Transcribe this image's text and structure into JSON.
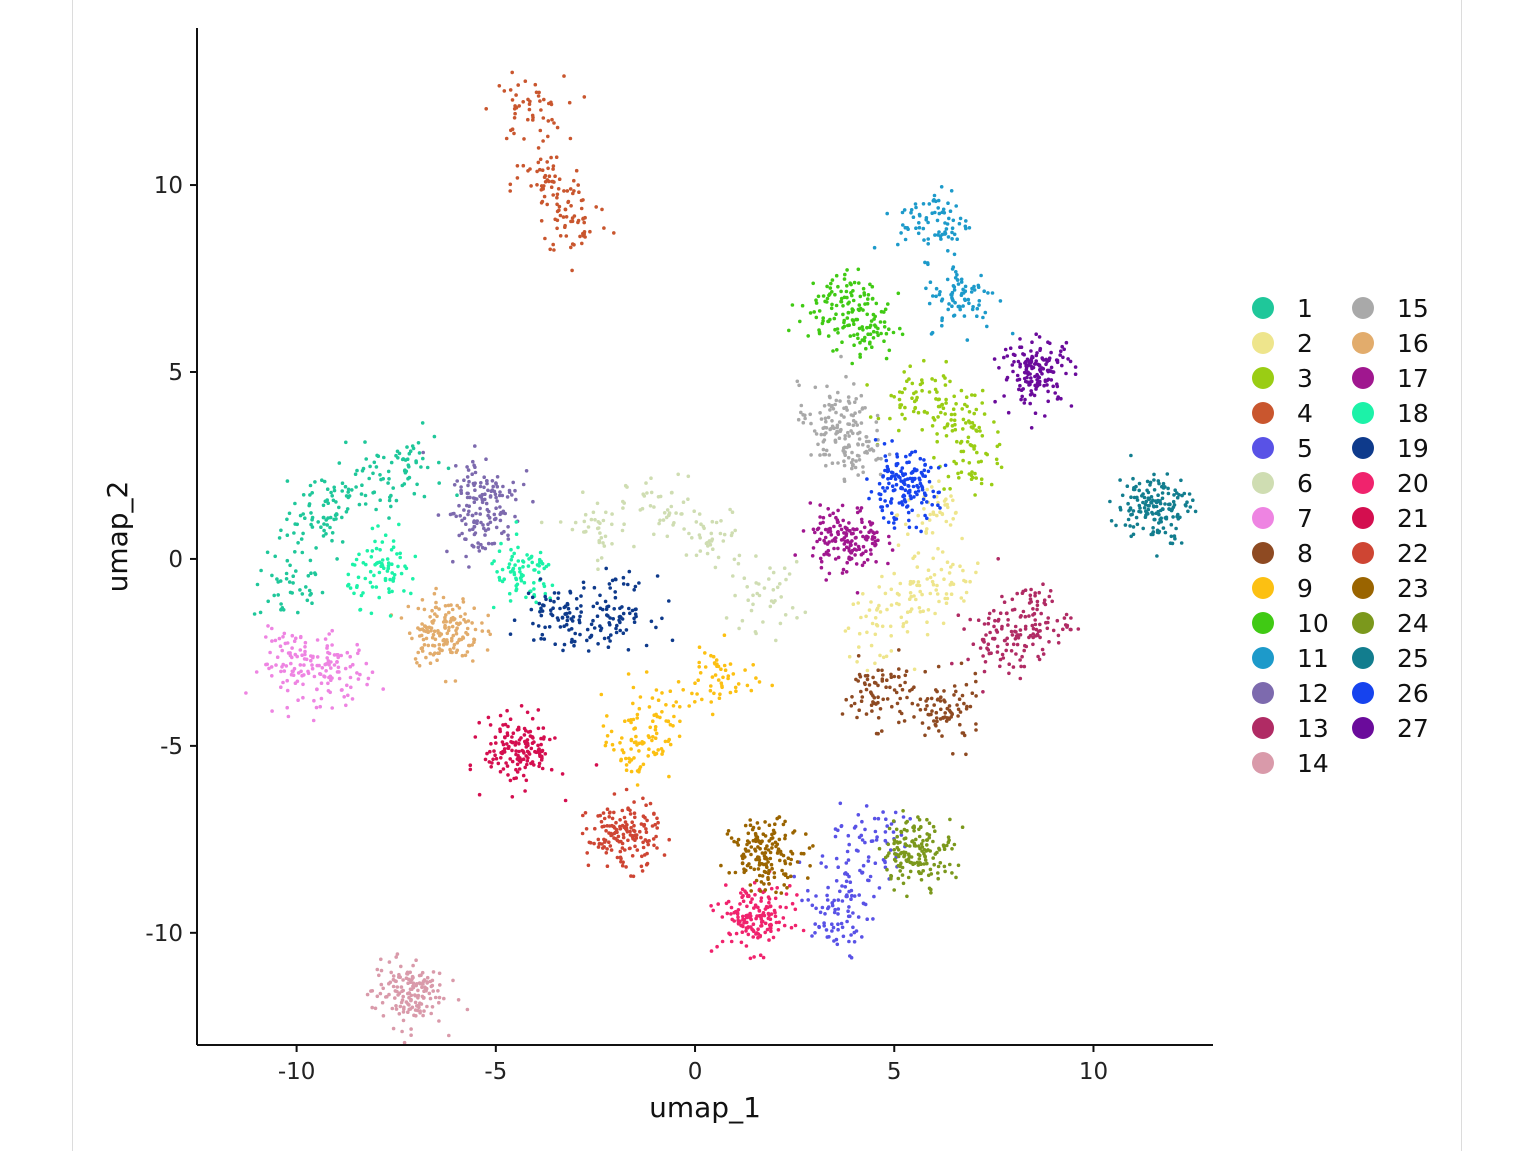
{
  "chart_data": {
    "type": "scatter",
    "title": "",
    "xlabel": "umap_1",
    "ylabel": "umap_2",
    "xlim": [
      -12.5,
      13
    ],
    "ylim": [
      -13,
      14.2
    ],
    "x_ticks": [
      -10,
      -5,
      0,
      5,
      10
    ],
    "x_tick_labels": [
      "-10",
      "-5",
      "0",
      "5",
      "10"
    ],
    "y_ticks": [
      -10,
      -5,
      0,
      5,
      10
    ],
    "y_tick_labels": [
      "-10",
      "-5",
      "0",
      "5",
      "10"
    ],
    "grid": false,
    "legend_position": "right",
    "legend_columns": 2,
    "series": [
      {
        "name": "1",
        "color": "#1FC79A",
        "centers": [
          [
            -9.5,
            0.8
          ],
          [
            -8.0,
            2.0
          ],
          [
            -10.2,
            -0.8
          ],
          [
            -9.2,
            1.6
          ],
          [
            -7.2,
            2.6
          ]
        ]
      },
      {
        "name": "2",
        "color": "#EEE58C",
        "centers": [
          [
            5.5,
            -1.0
          ],
          [
            6.3,
            -0.5
          ],
          [
            4.5,
            -1.8
          ],
          [
            6.0,
            1.2
          ]
        ]
      },
      {
        "name": "3",
        "color": "#9ACD14",
        "centers": [
          [
            6.5,
            3.8
          ],
          [
            5.6,
            4.2
          ],
          [
            7.0,
            2.8
          ]
        ]
      },
      {
        "name": "4",
        "color": "#C9562E",
        "centers": [
          [
            -4.2,
            12.0
          ],
          [
            -3.7,
            10.0
          ],
          [
            -3.0,
            9.0
          ]
        ]
      },
      {
        "name": "5",
        "color": "#5952E6",
        "centers": [
          [
            3.8,
            -8.6
          ],
          [
            3.4,
            -9.8
          ],
          [
            4.4,
            -7.4
          ]
        ]
      },
      {
        "name": "6",
        "color": "#CFDDB2",
        "centers": [
          [
            -0.8,
            1.3
          ],
          [
            0.5,
            0.5
          ],
          [
            1.8,
            -1.0
          ],
          [
            -2.5,
            0.8
          ]
        ]
      },
      {
        "name": "7",
        "color": "#EE84E2",
        "centers": [
          [
            -10.0,
            -2.8
          ],
          [
            -9.0,
            -3.0
          ]
        ]
      },
      {
        "name": "8",
        "color": "#8E4A22",
        "centers": [
          [
            4.6,
            -3.6
          ],
          [
            6.3,
            -4.1
          ]
        ]
      },
      {
        "name": "9",
        "color": "#FCC012",
        "centers": [
          [
            0.6,
            -3.2
          ],
          [
            -1.0,
            -4.2
          ],
          [
            -1.5,
            -5.0
          ]
        ]
      },
      {
        "name": "10",
        "color": "#40CA14",
        "centers": [
          [
            3.5,
            6.8
          ],
          [
            4.2,
            6.2
          ]
        ]
      },
      {
        "name": "11",
        "color": "#1D9ACA",
        "centers": [
          [
            6.0,
            9.0
          ],
          [
            6.7,
            7.0
          ]
        ]
      },
      {
        "name": "12",
        "color": "#7D6AAE",
        "centers": [
          [
            -5.3,
            1.9
          ],
          [
            -5.4,
            1.0
          ]
        ]
      },
      {
        "name": "13",
        "color": "#B02B64",
        "centers": [
          [
            7.7,
            -2.2
          ],
          [
            8.5,
            -1.6
          ]
        ]
      },
      {
        "name": "14",
        "color": "#D99AAA",
        "centers": [
          [
            -7.2,
            -11.6
          ]
        ]
      },
      {
        "name": "15",
        "color": "#A9A9A9",
        "centers": [
          [
            3.5,
            3.8
          ],
          [
            3.9,
            3.0
          ]
        ]
      },
      {
        "name": "16",
        "color": "#E2AC6C",
        "centers": [
          [
            -6.3,
            -1.9
          ]
        ]
      },
      {
        "name": "17",
        "color": "#A0178F",
        "centers": [
          [
            3.8,
            0.5
          ]
        ]
      },
      {
        "name": "18",
        "color": "#1CF2A8",
        "centers": [
          [
            -7.8,
            -0.3
          ],
          [
            -4.3,
            -0.5
          ]
        ]
      },
      {
        "name": "19",
        "color": "#0E3A8B",
        "centers": [
          [
            -3.4,
            -1.5
          ],
          [
            -2.0,
            -1.4
          ]
        ]
      },
      {
        "name": "20",
        "color": "#F0236D",
        "centers": [
          [
            1.5,
            -9.6
          ]
        ]
      },
      {
        "name": "21",
        "color": "#D40E4F",
        "centers": [
          [
            -4.4,
            -5.1
          ]
        ]
      },
      {
        "name": "22",
        "color": "#CE4533",
        "centers": [
          [
            -1.8,
            -7.4
          ]
        ]
      },
      {
        "name": "23",
        "color": "#9A6400",
        "centers": [
          [
            1.8,
            -7.9
          ]
        ]
      },
      {
        "name": "24",
        "color": "#7B981C",
        "centers": [
          [
            5.6,
            -7.8
          ]
        ]
      },
      {
        "name": "25",
        "color": "#127D8E",
        "centers": [
          [
            11.5,
            1.4
          ]
        ]
      },
      {
        "name": "26",
        "color": "#1643EE",
        "centers": [
          [
            5.2,
            1.9
          ]
        ]
      },
      {
        "name": "27",
        "color": "#6A0B9B",
        "centers": [
          [
            8.6,
            5.0
          ]
        ]
      }
    ]
  }
}
